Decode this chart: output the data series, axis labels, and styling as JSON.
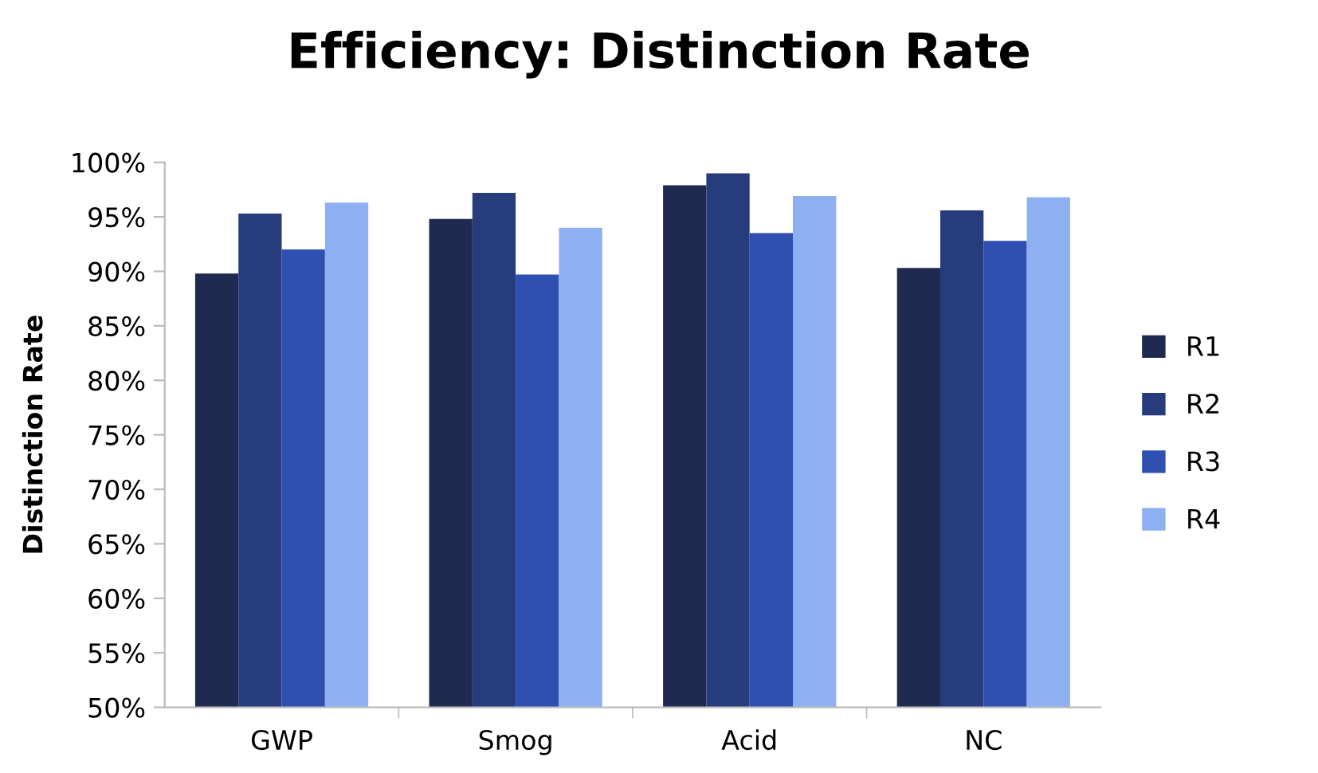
{
  "chart_data": {
    "type": "bar",
    "title": "Efficiency: Distinction Rate",
    "ylabel": "Distinction Rate",
    "categories": [
      "GWP",
      "Smog",
      "Acid",
      "NC"
    ],
    "series": [
      {
        "name": "R1",
        "color": "#1f2a50",
        "values": [
          89.8,
          94.8,
          97.9,
          90.3
        ]
      },
      {
        "name": "R2",
        "color": "#263c7c",
        "values": [
          95.3,
          97.2,
          99.0,
          95.6
        ]
      },
      {
        "name": "R3",
        "color": "#2f50b0",
        "values": [
          92.0,
          89.7,
          93.5,
          92.8
        ]
      },
      {
        "name": "R4",
        "color": "#8db0f2",
        "values": [
          96.3,
          94.0,
          96.9,
          96.8
        ]
      }
    ],
    "ylim": [
      50,
      100
    ],
    "yticks": [
      {
        "value": 50,
        "label": "50%"
      },
      {
        "value": 55,
        "label": "55%"
      },
      {
        "value": 60,
        "label": "60%"
      },
      {
        "value": 65,
        "label": "65%"
      },
      {
        "value": 70,
        "label": "70%"
      },
      {
        "value": 75,
        "label": "75%"
      },
      {
        "value": 80,
        "label": "80%"
      },
      {
        "value": 85,
        "label": "85%"
      },
      {
        "value": 90,
        "label": "90%"
      },
      {
        "value": 95,
        "label": "95%"
      },
      {
        "value": 100,
        "label": "100%"
      }
    ],
    "grid": false,
    "legend": "right"
  }
}
